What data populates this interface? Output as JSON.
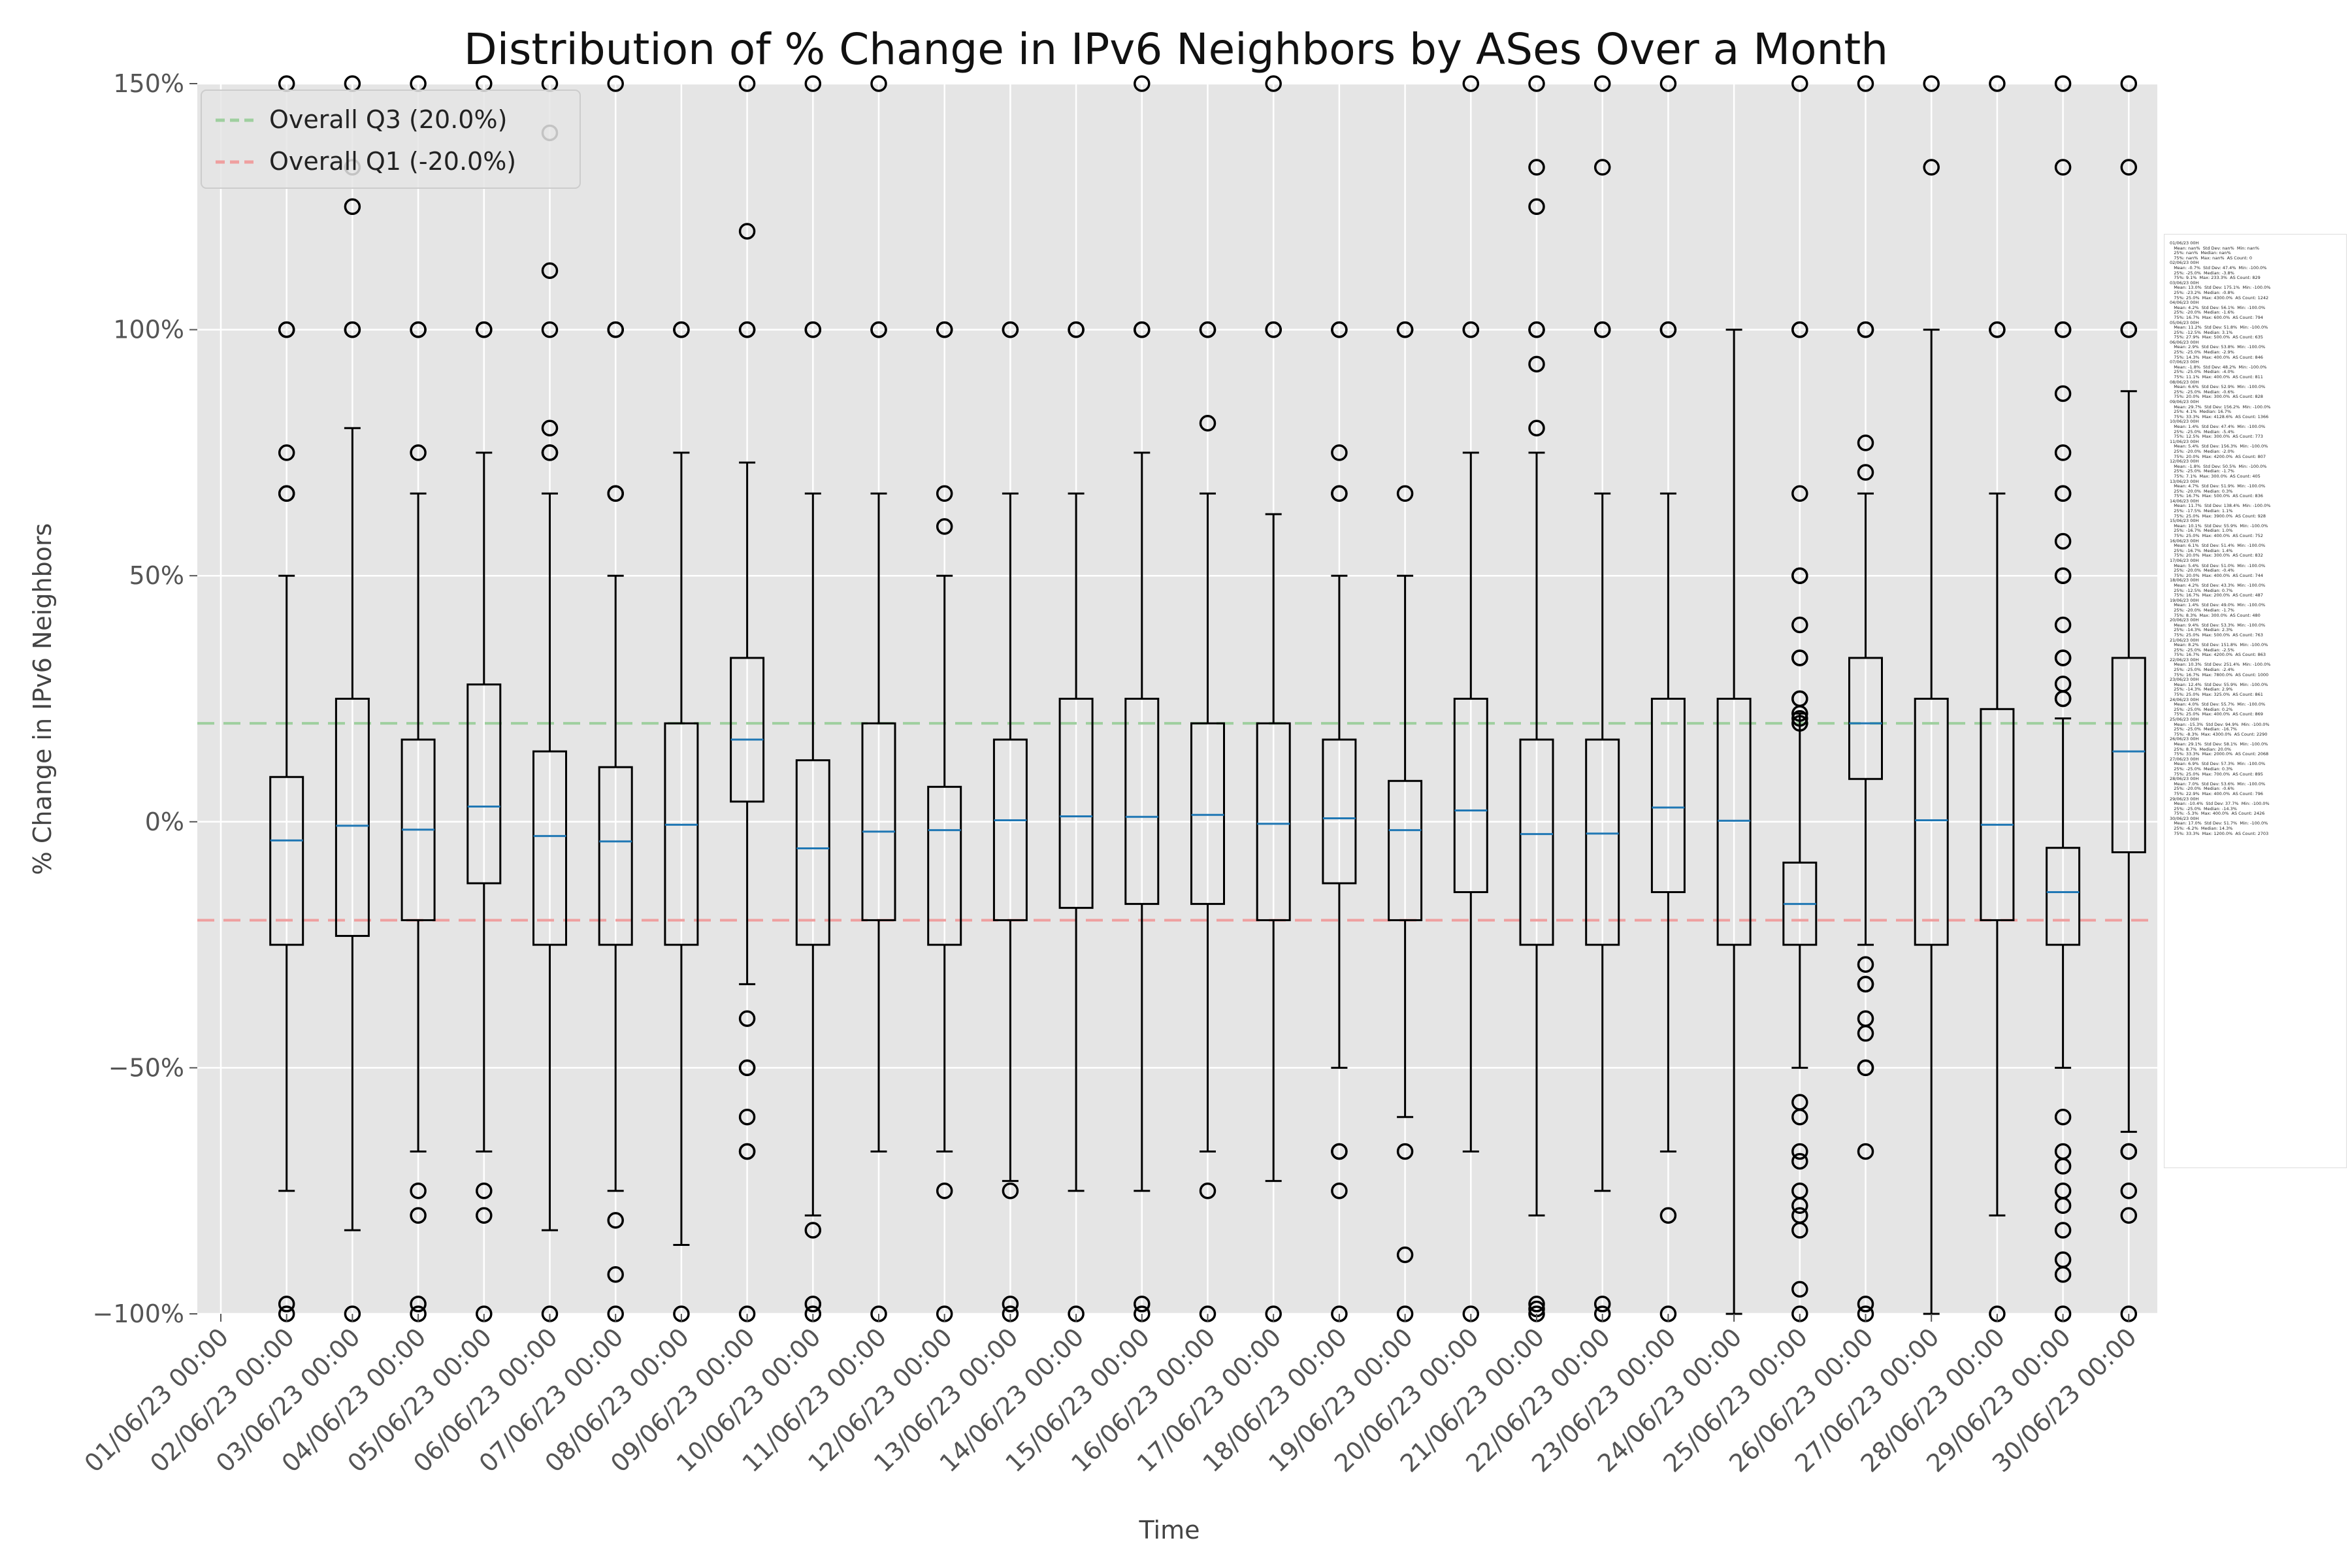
{
  "chart_data": {
    "type": "box",
    "title": "Distribution of % Change in IPv6 Neighbors by ASes Over a Month",
    "xlabel": "Time",
    "ylabel": "% Change in IPv6 Neighbors",
    "ylim": [
      -100,
      150
    ],
    "yticks": [
      -100,
      -50,
      0,
      50,
      100,
      150
    ],
    "ytick_labels": [
      "−100%",
      "−50%",
      "0%",
      "50%",
      "100%",
      "150%"
    ],
    "grid": true,
    "legend_position": "top-left",
    "reference_lines": [
      {
        "name": "Overall Q3 (20.0%)",
        "value": 20,
        "color": "#9fcf9f"
      },
      {
        "name": "Overall Q1 (-20.0%)",
        "value": -20,
        "color": "#ef9f9f"
      }
    ],
    "categories": [
      "01/06/23 00:00",
      "02/06/23 00:00",
      "03/06/23 00:00",
      "04/06/23 00:00",
      "05/06/23 00:00",
      "06/06/23 00:00",
      "07/06/23 00:00",
      "08/06/23 00:00",
      "09/06/23 00:00",
      "10/06/23 00:00",
      "11/06/23 00:00",
      "12/06/23 00:00",
      "13/06/23 00:00",
      "14/06/23 00:00",
      "15/06/23 00:00",
      "16/06/23 00:00",
      "17/06/23 00:00",
      "18/06/23 00:00",
      "19/06/23 00:00",
      "20/06/23 00:00",
      "21/06/23 00:00",
      "22/06/23 00:00",
      "23/06/23 00:00",
      "24/06/23 00:00",
      "25/06/23 00:00",
      "26/06/23 00:00",
      "27/06/23 00:00",
      "28/06/23 00:00",
      "29/06/23 00:00",
      "30/06/23 00:00"
    ],
    "boxes": [
      null,
      {
        "q1": -25.0,
        "median": -3.8,
        "q3": 9.1,
        "whislo": -75,
        "whishi": 50,
        "fliers": [
          -100,
          -98,
          66.7,
          66.7,
          75,
          100,
          100,
          150
        ]
      },
      {
        "q1": -23.2,
        "median": -0.8,
        "q3": 25.0,
        "whislo": -83,
        "whishi": 80,
        "fliers": [
          -100,
          100,
          100,
          125,
          133,
          150
        ]
      },
      {
        "q1": -20.0,
        "median": -1.6,
        "q3": 16.7,
        "whislo": -67,
        "whishi": 66.7,
        "fliers": [
          -100,
          -98,
          -80,
          -75,
          75,
          100,
          100,
          150
        ]
      },
      {
        "q1": -12.5,
        "median": 3.1,
        "q3": 27.9,
        "whislo": -67,
        "whishi": 75,
        "fliers": [
          -100,
          -80,
          -75,
          100,
          100,
          150
        ]
      },
      {
        "q1": -25.0,
        "median": -2.9,
        "q3": 14.3,
        "whislo": -83,
        "whishi": 66.7,
        "fliers": [
          -100,
          75,
          75,
          80,
          100,
          112,
          140,
          150
        ]
      },
      {
        "q1": -25.0,
        "median": -4.0,
        "q3": 11.1,
        "whislo": -75,
        "whishi": 50,
        "fliers": [
          -100,
          -92,
          -81,
          66.7,
          66.7,
          100,
          100,
          150
        ]
      },
      {
        "q1": -25.0,
        "median": -0.6,
        "q3": 20.0,
        "whislo": -86,
        "whishi": 75,
        "fliers": [
          -100,
          100,
          100
        ]
      },
      {
        "q1": 4.1,
        "median": 16.7,
        "q3": 33.3,
        "whislo": -33,
        "whishi": 73,
        "fliers": [
          -100,
          -67,
          -67,
          -60,
          -50,
          -50,
          -40,
          100,
          100,
          120,
          150
        ]
      },
      {
        "q1": -25.0,
        "median": -5.4,
        "q3": 12.5,
        "whislo": -80,
        "whishi": 66.7,
        "fliers": [
          -100,
          -98,
          -83,
          100,
          100,
          150
        ]
      },
      {
        "q1": -20.0,
        "median": -2.0,
        "q3": 20.0,
        "whislo": -67,
        "whishi": 66.7,
        "fliers": [
          -100,
          100,
          100,
          150
        ]
      },
      {
        "q1": -25.0,
        "median": -1.7,
        "q3": 7.1,
        "whislo": -67,
        "whishi": 50,
        "fliers": [
          -100,
          -75,
          60,
          66.7,
          100,
          100
        ]
      },
      {
        "q1": -20.0,
        "median": 0.3,
        "q3": 16.7,
        "whislo": -73,
        "whishi": 66.7,
        "fliers": [
          -100,
          -98,
          -75,
          100,
          100
        ]
      },
      {
        "q1": -17.5,
        "median": 1.1,
        "q3": 25.0,
        "whislo": -75,
        "whishi": 66.7,
        "fliers": [
          -100,
          100,
          100
        ]
      },
      {
        "q1": -16.7,
        "median": 1.0,
        "q3": 25.0,
        "whislo": -75,
        "whishi": 75,
        "fliers": [
          -100,
          -98,
          100,
          100,
          150
        ]
      },
      {
        "q1": -16.7,
        "median": 1.4,
        "q3": 20.0,
        "whislo": -67,
        "whishi": 66.7,
        "fliers": [
          -100,
          -75,
          81,
          100,
          100
        ]
      },
      {
        "q1": -20.0,
        "median": -0.4,
        "q3": 20.0,
        "whislo": -73,
        "whishi": 62.5,
        "fliers": [
          -100,
          100,
          100,
          150
        ]
      },
      {
        "q1": -12.5,
        "median": 0.7,
        "q3": 16.7,
        "whislo": -50,
        "whishi": 50,
        "fliers": [
          -100,
          -75,
          -67,
          -67,
          66.7,
          66.7,
          75,
          100,
          100
        ]
      },
      {
        "q1": -20.0,
        "median": -1.7,
        "q3": 8.3,
        "whislo": -60,
        "whishi": 50,
        "fliers": [
          -100,
          -88,
          -67,
          66.7,
          100,
          100
        ]
      },
      {
        "q1": -14.3,
        "median": 2.3,
        "q3": 25.0,
        "whislo": -67,
        "whishi": 75,
        "fliers": [
          -100,
          100,
          100,
          150
        ]
      },
      {
        "q1": -25.0,
        "median": -2.5,
        "q3": 16.7,
        "whislo": -80,
        "whishi": 75,
        "fliers": [
          -100,
          -99,
          -98,
          80,
          93,
          100,
          100,
          125,
          133,
          150
        ]
      },
      {
        "q1": -25.0,
        "median": -2.4,
        "q3": 16.7,
        "whislo": -75,
        "whishi": 66.7,
        "fliers": [
          -100,
          -98,
          100,
          100,
          133,
          150
        ]
      },
      {
        "q1": -14.3,
        "median": 2.9,
        "q3": 25.0,
        "whislo": -67,
        "whishi": 66.7,
        "fliers": [
          -100,
          -80,
          100,
          100,
          150
        ]
      },
      {
        "q1": -25.0,
        "median": 0.2,
        "q3": 25.0,
        "whislo": -100,
        "whishi": 100,
        "fliers": []
      },
      {
        "q1": -25.0,
        "median": -16.7,
        "q3": -8.3,
        "whislo": -50,
        "whishi": 22,
        "fliers": [
          -100,
          -95,
          -83,
          -80,
          -78,
          -75,
          -69,
          -67,
          -60,
          -57,
          20,
          21,
          22,
          25,
          25,
          33.3,
          33.3,
          40,
          50,
          50,
          66.7,
          100,
          100,
          150
        ]
      },
      {
        "q1": 8.7,
        "median": 20.0,
        "q3": 33.3,
        "whislo": -25,
        "whishi": 66.7,
        "fliers": [
          -100,
          -98,
          -67,
          -50,
          -50,
          -43,
          -40,
          -33,
          -33,
          -29,
          71,
          77,
          100,
          100,
          150
        ]
      },
      {
        "q1": -25.0,
        "median": 0.3,
        "q3": 25.0,
        "whislo": -100,
        "whishi": 100,
        "fliers": [
          133,
          150
        ]
      },
      {
        "q1": -20.0,
        "median": -0.6,
        "q3": 22.9,
        "whislo": -80,
        "whishi": 66.7,
        "fliers": [
          -100,
          100,
          100,
          150
        ]
      },
      {
        "q1": -25.0,
        "median": -14.3,
        "q3": -5.3,
        "whislo": -50,
        "whishi": 21,
        "fliers": [
          -100,
          -92,
          -89,
          -83,
          -78,
          -75,
          -70,
          -67,
          -60,
          25,
          25,
          28,
          33.3,
          33.3,
          40,
          50,
          50,
          57,
          66.7,
          66.7,
          75,
          87,
          100,
          100,
          133,
          150
        ]
      },
      {
        "q1": -6.2,
        "median": 14.3,
        "q3": 33.3,
        "whislo": -63,
        "whishi": 87.5,
        "fliers": [
          -100,
          -80,
          -75,
          -67,
          -67,
          100,
          100,
          133,
          150
        ]
      }
    ],
    "stats_lines": [
      [
        "01/06/23 00H",
        "Mean: nan%  Std Dev: nan%  Min: nan%",
        "25%: nan%  Median: nan%",
        "75%: nan%  Max: nan%  AS Count: 0"
      ],
      [
        "02/06/23 00H",
        "Mean: -0.7%  Std Dev: 47.4%  Min: -100.0%",
        "25%: -25.0%  Median: -3.8%",
        "75%: 9.1%  Max: 233.3%  AS Count: 829"
      ],
      [
        "03/06/23 00H",
        "Mean: 13.0%  Std Dev: 175.1%  Min: -100.0%",
        "25%: -23.2%  Median: -0.8%",
        "75%: 25.0%  Max: 4300.0%  AS Count: 1242"
      ],
      [
        "04/06/23 00H",
        "Mean: 4.2%  Std Dev: 56.1%  Min: -100.0%",
        "25%: -20.0%  Median: -1.6%",
        "75%: 16.7%  Max: 600.0%  AS Count: 794"
      ],
      [
        "05/06/23 00H",
        "Mean: 11.2%  Std Dev: 51.8%  Min: -100.0%",
        "25%: -12.5%  Median: 3.1%",
        "75%: 27.9%  Max: 500.0%  AS Count: 635"
      ],
      [
        "06/06/23 00H",
        "Mean: 2.9%  Std Dev: 53.8%  Min: -100.0%",
        "25%: -25.0%  Median: -2.9%",
        "75%: 14.3%  Max: 400.0%  AS Count: 846"
      ],
      [
        "07/06/23 00H",
        "Mean: -1.8%  Std Dev: 48.2%  Min: -100.0%",
        "25%: -25.0%  Median: -4.0%",
        "75%: 11.1%  Max: 400.0%  AS Count: 811"
      ],
      [
        "08/06/23 00H",
        "Mean: 6.6%  Std Dev: 52.9%  Min: -100.0%",
        "25%: -25.0%  Median: -0.6%",
        "75%: 20.0%  Max: 300.0%  AS Count: 828"
      ],
      [
        "09/06/23 00H",
        "Mean: 29.7%  Std Dev: 156.2%  Min: -100.0%",
        "25%: 4.1%  Median: 16.7%",
        "75%: 33.3%  Max: 4128.6%  AS Count: 1366"
      ],
      [
        "10/06/23 00H",
        "Mean: 1.4%  Std Dev: 47.4%  Min: -100.0%",
        "25%: -25.0%  Median: -5.4%",
        "75%: 12.5%  Max: 300.0%  AS Count: 773"
      ],
      [
        "11/06/23 00H",
        "Mean: 5.4%  Std Dev: 156.3%  Min: -100.0%",
        "25%: -20.0%  Median: -2.0%",
        "75%: 20.0%  Max: 4200.0%  AS Count: 807"
      ],
      [
        "12/06/23 00H",
        "Mean: -1.8%  Std Dev: 50.5%  Min: -100.0%",
        "25%: -25.0%  Median: -1.7%",
        "75%: 7.1%  Max: 300.0%  AS Count: 405"
      ],
      [
        "13/06/23 00H",
        "Mean: 4.7%  Std Dev: 51.9%  Min: -100.0%",
        "25%: -20.0%  Median: 0.3%",
        "75%: 16.7%  Max: 500.0%  AS Count: 836"
      ],
      [
        "14/06/23 00H",
        "Mean: 11.7%  Std Dev: 138.4%  Min: -100.0%",
        "25%: -17.5%  Median: 1.1%",
        "75%: 25.0%  Max: 3900.0%  AS Count: 928"
      ],
      [
        "15/06/23 00H",
        "Mean: 10.1%  Std Dev: 55.9%  Min: -100.0%",
        "25%: -16.7%  Median: 1.0%",
        "75%: 25.0%  Max: 400.0%  AS Count: 752"
      ],
      [
        "16/06/23 00H",
        "Mean: 6.1%  Std Dev: 51.4%  Min: -100.0%",
        "25%: -16.7%  Median: 1.4%",
        "75%: 20.0%  Max: 300.0%  AS Count: 832"
      ],
      [
        "17/06/23 00H",
        "Mean: 5.4%  Std Dev: 51.0%  Min: -100.0%",
        "25%: -20.0%  Median: -0.4%",
        "75%: 20.0%  Max: 400.0%  AS Count: 744"
      ],
      [
        "18/06/23 00H",
        "Mean: 4.2%  Std Dev: 43.3%  Min: -100.0%",
        "25%: -12.5%  Median: 0.7%",
        "75%: 16.7%  Max: 200.0%  AS Count: 487"
      ],
      [
        "19/06/23 00H",
        "Mean: 1.4%  Std Dev: 49.0%  Min: -100.0%",
        "25%: -20.0%  Median: -1.7%",
        "75%: 8.3%  Max: 300.0%  AS Count: 480"
      ],
      [
        "20/06/23 00H",
        "Mean: 9.4%  Std Dev: 53.3%  Min: -100.0%",
        "25%: -14.3%  Median: 2.3%",
        "75%: 25.0%  Max: 500.0%  AS Count: 763"
      ],
      [
        "21/06/23 00H",
        "Mean: 8.2%  Std Dev: 151.8%  Min: -100.0%",
        "25%: -25.0%  Median: -2.5%",
        "75%: 16.7%  Max: 4200.0%  AS Count: 863"
      ],
      [
        "22/06/23 00H",
        "Mean: 10.3%  Std Dev: 251.4%  Min: -100.0%",
        "25%: -25.0%  Median: -2.4%",
        "75%: 16.7%  Max: 7800.0%  AS Count: 1000"
      ],
      [
        "23/06/23 00H",
        "Mean: 12.4%  Std Dev: 55.9%  Min: -100.0%",
        "25%: -14.3%  Median: 2.9%",
        "75%: 25.0%  Max: 325.0%  AS Count: 861"
      ],
      [
        "24/06/23 00H",
        "Mean: 4.0%  Std Dev: 55.7%  Min: -100.0%",
        "25%: -25.0%  Median: 0.2%",
        "75%: 25.0%  Max: 400.0%  AS Count: 869"
      ],
      [
        "25/06/23 00H",
        "Mean: -15.3%  Std Dev: 94.9%  Min: -100.0%",
        "25%: -25.0%  Median: -16.7%",
        "75%: -8.3%  Max: 4300.0%  AS Count: 2290"
      ],
      [
        "26/06/23 00H",
        "Mean: 29.1%  Std Dev: 58.1%  Min: -100.0%",
        "25%: 8.7%  Median: 20.0%",
        "75%: 33.3%  Max: 2000.0%  AS Count: 2068"
      ],
      [
        "27/06/23 00H",
        "Mean: 6.9%  Std Dev: 57.3%  Min: -100.0%",
        "25%: -25.0%  Median: 0.3%",
        "75%: 25.0%  Max: 700.0%  AS Count: 895"
      ],
      [
        "28/06/23 00H",
        "Mean: 7.0%  Std Dev: 53.6%  Min: -100.0%",
        "25%: -20.0%  Median: -0.6%",
        "75%: 22.9%  Max: 400.0%  AS Count: 796"
      ],
      [
        "29/06/23 00H",
        "Mean: -10.4%  Std Dev: 37.7%  Min: -100.0%",
        "25%: -25.0%  Median: -14.3%",
        "75%: -5.3%  Max: 400.0%  AS Count: 2426"
      ],
      [
        "30/06/23 00H",
        "Mean: 17.0%  Std Dev: 51.7%  Min: -100.0%",
        "25%: -6.2%  Median: 14.3%",
        "75%: 33.3%  Max: 1200.0%  AS Count: 2703"
      ]
    ],
    "colors": {
      "plot_background": "#e5e5e5",
      "grid": "#ffffff",
      "box_edge": "#000000",
      "median": "#1f77b4",
      "text": "#222222",
      "tick_text": "#555555"
    }
  }
}
